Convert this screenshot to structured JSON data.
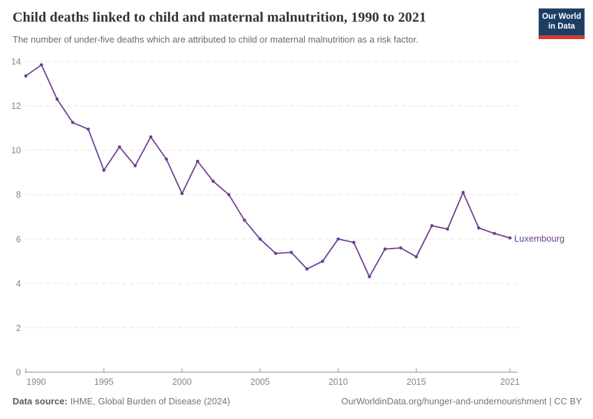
{
  "header": {
    "title": "Child deaths linked to child and maternal malnutrition, 1990 to 2021",
    "subtitle": "The number of under-five deaths which are attributed to child or maternal malnutrition as a risk factor."
  },
  "logo": {
    "line1": "Our World",
    "line2": "in Data"
  },
  "chart_data": {
    "type": "line",
    "title": "Child deaths linked to child and maternal malnutrition, 1990 to 2021",
    "xlabel": "",
    "ylabel": "",
    "xlim": [
      1990,
      2021
    ],
    "ylim": [
      0,
      14
    ],
    "x_ticks": [
      1990,
      1995,
      2000,
      2005,
      2010,
      2015,
      2021
    ],
    "y_ticks": [
      0,
      2,
      4,
      6,
      8,
      10,
      12,
      14
    ],
    "grid": "horizontal-dashed",
    "legend_position": "end-of-line-label",
    "series": [
      {
        "name": "Luxembourg",
        "color": "#6d3e91",
        "x": [
          1990,
          1991,
          1992,
          1993,
          1994,
          1995,
          1996,
          1997,
          1998,
          1999,
          2000,
          2001,
          2002,
          2003,
          2004,
          2005,
          2006,
          2007,
          2008,
          2009,
          2010,
          2011,
          2012,
          2013,
          2014,
          2015,
          2016,
          2017,
          2018,
          2019,
          2020,
          2021
        ],
        "values": [
          13.35,
          13.85,
          12.3,
          11.25,
          10.95,
          9.1,
          10.15,
          9.3,
          10.6,
          9.6,
          8.05,
          9.5,
          8.6,
          8.0,
          6.85,
          6.0,
          5.35,
          5.4,
          4.65,
          5.0,
          6.0,
          5.85,
          4.3,
          5.55,
          5.6,
          5.2,
          6.6,
          6.45,
          8.1,
          6.5,
          6.25,
          6.05
        ]
      }
    ]
  },
  "colors": {
    "accent_purple": "#6d3e91",
    "logo_navy": "#1d3d63",
    "logo_red": "#dc392d",
    "grid": "#e3e3e3",
    "axis": "#8a8a8a",
    "tick_text": "#848484"
  },
  "footer": {
    "datasource_label": "Data source:",
    "datasource_value": "IHME, Global Burden of Disease (2024)",
    "credit": "OurWorldinData.org/hunger-and-undernourishment | CC BY"
  }
}
